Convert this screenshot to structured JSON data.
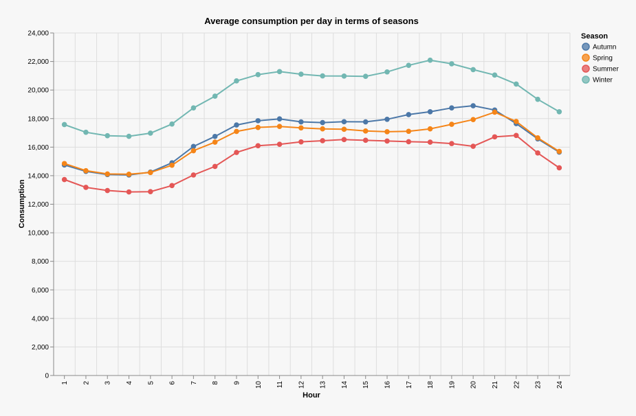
{
  "chart_data": {
    "type": "line",
    "title": "Average consumption per day in terms of seasons",
    "xlabel": "Hour",
    "ylabel": "Consumption",
    "x": [
      1,
      2,
      3,
      4,
      5,
      6,
      7,
      8,
      9,
      10,
      11,
      12,
      13,
      14,
      15,
      16,
      17,
      18,
      19,
      20,
      21,
      22,
      23,
      24
    ],
    "ylim": [
      0,
      24000
    ],
    "yticks": [
      0,
      2000,
      4000,
      6000,
      8000,
      10000,
      12000,
      14000,
      16000,
      18000,
      20000,
      22000,
      24000
    ],
    "ytick_labels": [
      "0",
      "2,000",
      "4,000",
      "6,000",
      "8,000",
      "10,000",
      "12,000",
      "14,000",
      "16,000",
      "18,000",
      "20,000",
      "22,000",
      "24,000"
    ],
    "grid": true,
    "legend": {
      "title": "Season",
      "placement": "right"
    },
    "series": [
      {
        "name": "Autumn",
        "color": "#4c78a8",
        "values": [
          14750,
          14300,
          14080,
          14050,
          14250,
          14900,
          16050,
          16750,
          17550,
          17850,
          17980,
          17770,
          17720,
          17780,
          17770,
          17950,
          18280,
          18480,
          18750,
          18900,
          18600,
          17650,
          16580,
          15650
        ]
      },
      {
        "name": "Spring",
        "color": "#f58518",
        "values": [
          14850,
          14350,
          14120,
          14100,
          14220,
          14730,
          15750,
          16350,
          17100,
          17380,
          17450,
          17350,
          17280,
          17250,
          17130,
          17080,
          17110,
          17280,
          17600,
          17930,
          18450,
          17800,
          16650,
          15700
        ]
      },
      {
        "name": "Summer",
        "color": "#e45756",
        "values": [
          13730,
          13180,
          12960,
          12860,
          12880,
          13310,
          14050,
          14650,
          15630,
          16100,
          16200,
          16370,
          16450,
          16530,
          16480,
          16430,
          16380,
          16350,
          16250,
          16060,
          16720,
          16820,
          15590,
          14550
        ]
      },
      {
        "name": "Winter",
        "color": "#72b7b2",
        "values": [
          17580,
          17040,
          16800,
          16760,
          16980,
          17620,
          18750,
          19570,
          20640,
          21080,
          21290,
          21110,
          20990,
          20980,
          20960,
          21270,
          21730,
          22090,
          21840,
          21430,
          21050,
          20420,
          19350,
          18480
        ]
      }
    ]
  }
}
